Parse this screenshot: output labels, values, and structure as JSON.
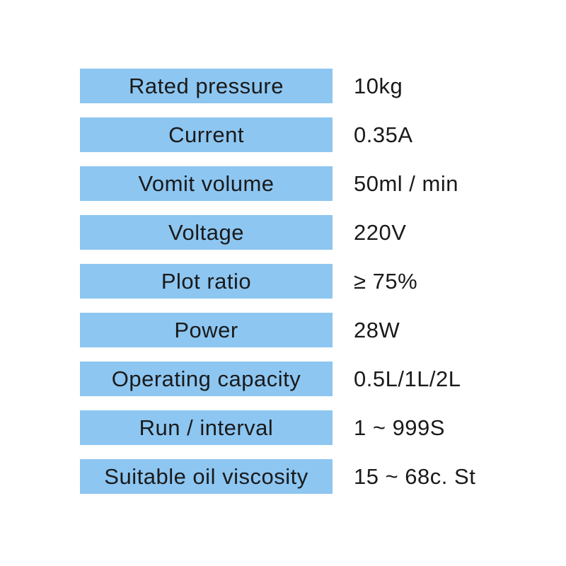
{
  "colors": {
    "bar": "#8dc6f1",
    "text": "#1a1a1a",
    "background": "#ffffff"
  },
  "table": {
    "rows": [
      {
        "label": "Rated pressure",
        "value": "10kg"
      },
      {
        "label": "Current",
        "value": "0.35A"
      },
      {
        "label": "Vomit volume",
        "value": "50ml / min"
      },
      {
        "label": "Voltage",
        "value": "220V"
      },
      {
        "label": "Plot ratio",
        "value": "≥ 75%"
      },
      {
        "label": "Power",
        "value": "28W"
      },
      {
        "label": "Operating capacity",
        "value": "0.5L/1L/2L"
      },
      {
        "label": "Run / interval",
        "value": "1 ~ 999S"
      },
      {
        "label": "Suitable oil viscosity",
        "value": "15 ~ 68c. St"
      }
    ]
  }
}
